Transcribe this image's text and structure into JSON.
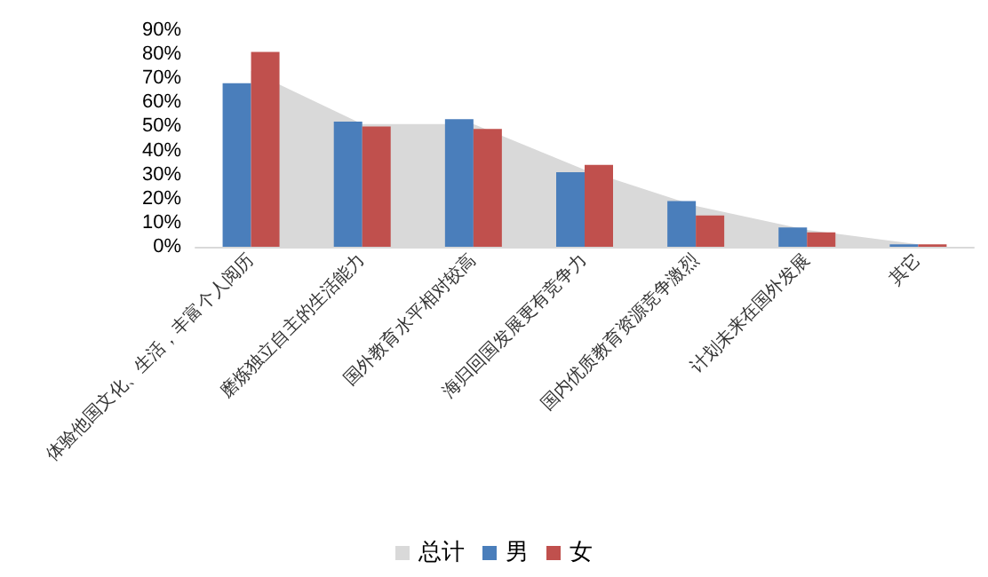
{
  "chart_data": {
    "type": "bar",
    "categories": [
      "体验他国文化、生活，丰富个人阅历",
      "磨炼独立自主的生活能力",
      "国外教育水平相对较高",
      "海归回国发展更有竞争力",
      "国内优质教育资源竞争激烈",
      "计划未来在国外发展",
      "其它"
    ],
    "series": [
      {
        "name": "总计",
        "type": "area",
        "color": "#d9d9d9",
        "values": [
          73,
          51,
          51,
          32,
          17,
          7,
          1
        ]
      },
      {
        "name": "男",
        "color": "#4a7ebb",
        "values": [
          68,
          52,
          53,
          31,
          19,
          8,
          1
        ]
      },
      {
        "name": "女",
        "color": "#c0504d",
        "values": [
          81,
          50,
          49,
          34,
          13,
          6,
          1
        ]
      }
    ],
    "ylim": [
      0,
      90
    ],
    "yticks": [
      {
        "value": 0,
        "label": "0%"
      },
      {
        "value": 10,
        "label": "10%"
      },
      {
        "value": 20,
        "label": "20%"
      },
      {
        "value": 30,
        "label": "30%"
      },
      {
        "value": 40,
        "label": "40%"
      },
      {
        "value": 50,
        "label": "50%"
      },
      {
        "value": 60,
        "label": "60%"
      },
      {
        "value": 70,
        "label": "70%"
      },
      {
        "value": 80,
        "label": "80%"
      },
      {
        "value": 90,
        "label": "90%"
      }
    ],
    "grid": false,
    "legend": "bottom"
  }
}
